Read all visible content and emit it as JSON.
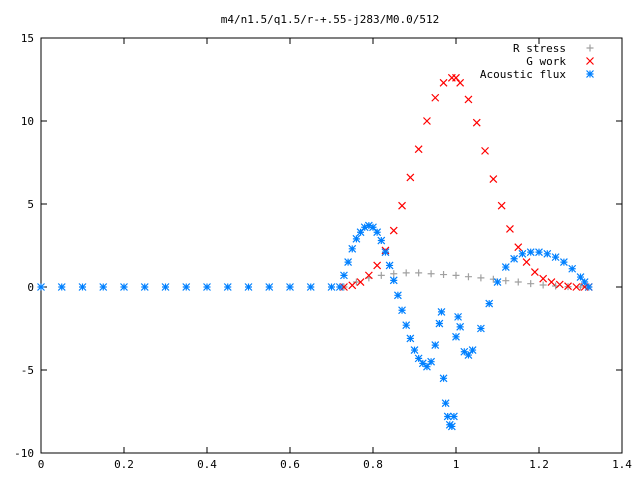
{
  "chart_data": {
    "type": "scatter",
    "title": "m4/n1.5/q1.5/r-+.55-j283/M0.0/512",
    "xlabel": "",
    "ylabel": "",
    "xlim": [
      0,
      1.4
    ],
    "ylim": [
      -10,
      15
    ],
    "x_ticks": [
      "0",
      "0.2",
      "0.4",
      "0.6",
      "0.8",
      "1",
      "1.2",
      "1.4"
    ],
    "y_ticks": [
      "15",
      "10",
      "5",
      "0",
      "-5",
      "-10"
    ],
    "grid": false,
    "legend_position": "top-right",
    "series": [
      {
        "name": "R stress",
        "marker": "plus",
        "color": "#a0a0a0",
        "x": [
          0.73,
          0.76,
          0.79,
          0.82,
          0.85,
          0.88,
          0.91,
          0.94,
          0.97,
          1.0,
          1.03,
          1.06,
          1.09,
          1.12,
          1.15,
          1.18,
          1.21,
          1.24,
          1.27,
          1.3,
          1.32
        ],
        "y": [
          0.0,
          0.3,
          0.55,
          0.7,
          0.8,
          0.85,
          0.85,
          0.8,
          0.75,
          0.7,
          0.62,
          0.55,
          0.47,
          0.38,
          0.3,
          0.2,
          0.12,
          0.06,
          0.02,
          0.0,
          0.0
        ]
      },
      {
        "name": "G work",
        "marker": "cross",
        "color": "#ff0000",
        "x": [
          0.73,
          0.75,
          0.77,
          0.79,
          0.81,
          0.83,
          0.85,
          0.87,
          0.89,
          0.91,
          0.93,
          0.95,
          0.97,
          0.99,
          1.0,
          1.01,
          1.03,
          1.05,
          1.07,
          1.09,
          1.11,
          1.13,
          1.15,
          1.17,
          1.19,
          1.21,
          1.23,
          1.25,
          1.27,
          1.29,
          1.31,
          1.32
        ],
        "y": [
          0.0,
          0.1,
          0.3,
          0.7,
          1.3,
          2.2,
          3.4,
          4.9,
          6.6,
          8.3,
          10.0,
          11.4,
          12.3,
          12.6,
          12.6,
          12.3,
          11.3,
          9.9,
          8.2,
          6.5,
          4.9,
          3.5,
          2.4,
          1.5,
          0.9,
          0.5,
          0.3,
          0.15,
          0.05,
          0.0,
          0.0,
          0.0
        ]
      },
      {
        "name": "Acoustic flux",
        "marker": "star",
        "color": "#0080ff",
        "x": [
          0.0,
          0.05,
          0.1,
          0.15,
          0.2,
          0.25,
          0.3,
          0.35,
          0.4,
          0.45,
          0.5,
          0.55,
          0.6,
          0.65,
          0.7,
          0.72,
          0.73,
          0.74,
          0.75,
          0.76,
          0.77,
          0.78,
          0.79,
          0.8,
          0.81,
          0.82,
          0.83,
          0.84,
          0.85,
          0.86,
          0.87,
          0.88,
          0.89,
          0.9,
          0.91,
          0.92,
          0.93,
          0.94,
          0.95,
          0.96,
          0.965,
          0.97,
          0.975,
          0.98,
          0.985,
          0.99,
          0.995,
          1.0,
          1.005,
          1.01,
          1.02,
          1.03,
          1.04,
          1.06,
          1.08,
          1.1,
          1.12,
          1.14,
          1.16,
          1.18,
          1.2,
          1.22,
          1.24,
          1.26,
          1.28,
          1.3,
          1.31,
          1.32
        ],
        "y": [
          0.0,
          0.0,
          0.0,
          0.0,
          0.0,
          0.0,
          0.0,
          0.0,
          0.0,
          0.0,
          0.0,
          0.0,
          0.0,
          0.0,
          0.0,
          0.0,
          0.7,
          1.5,
          2.3,
          2.9,
          3.3,
          3.6,
          3.7,
          3.6,
          3.3,
          2.8,
          2.1,
          1.3,
          0.4,
          -0.5,
          -1.4,
          -2.3,
          -3.1,
          -3.8,
          -4.3,
          -4.6,
          -4.8,
          -4.5,
          -3.5,
          -2.2,
          -1.5,
          -5.5,
          -7.0,
          -7.8,
          -8.3,
          -8.4,
          -7.8,
          -3.0,
          -1.8,
          -2.4,
          -3.9,
          -4.1,
          -3.8,
          -2.5,
          -1.0,
          0.3,
          1.2,
          1.7,
          2.0,
          2.1,
          2.1,
          2.0,
          1.8,
          1.5,
          1.1,
          0.6,
          0.3,
          0.0
        ]
      }
    ]
  }
}
